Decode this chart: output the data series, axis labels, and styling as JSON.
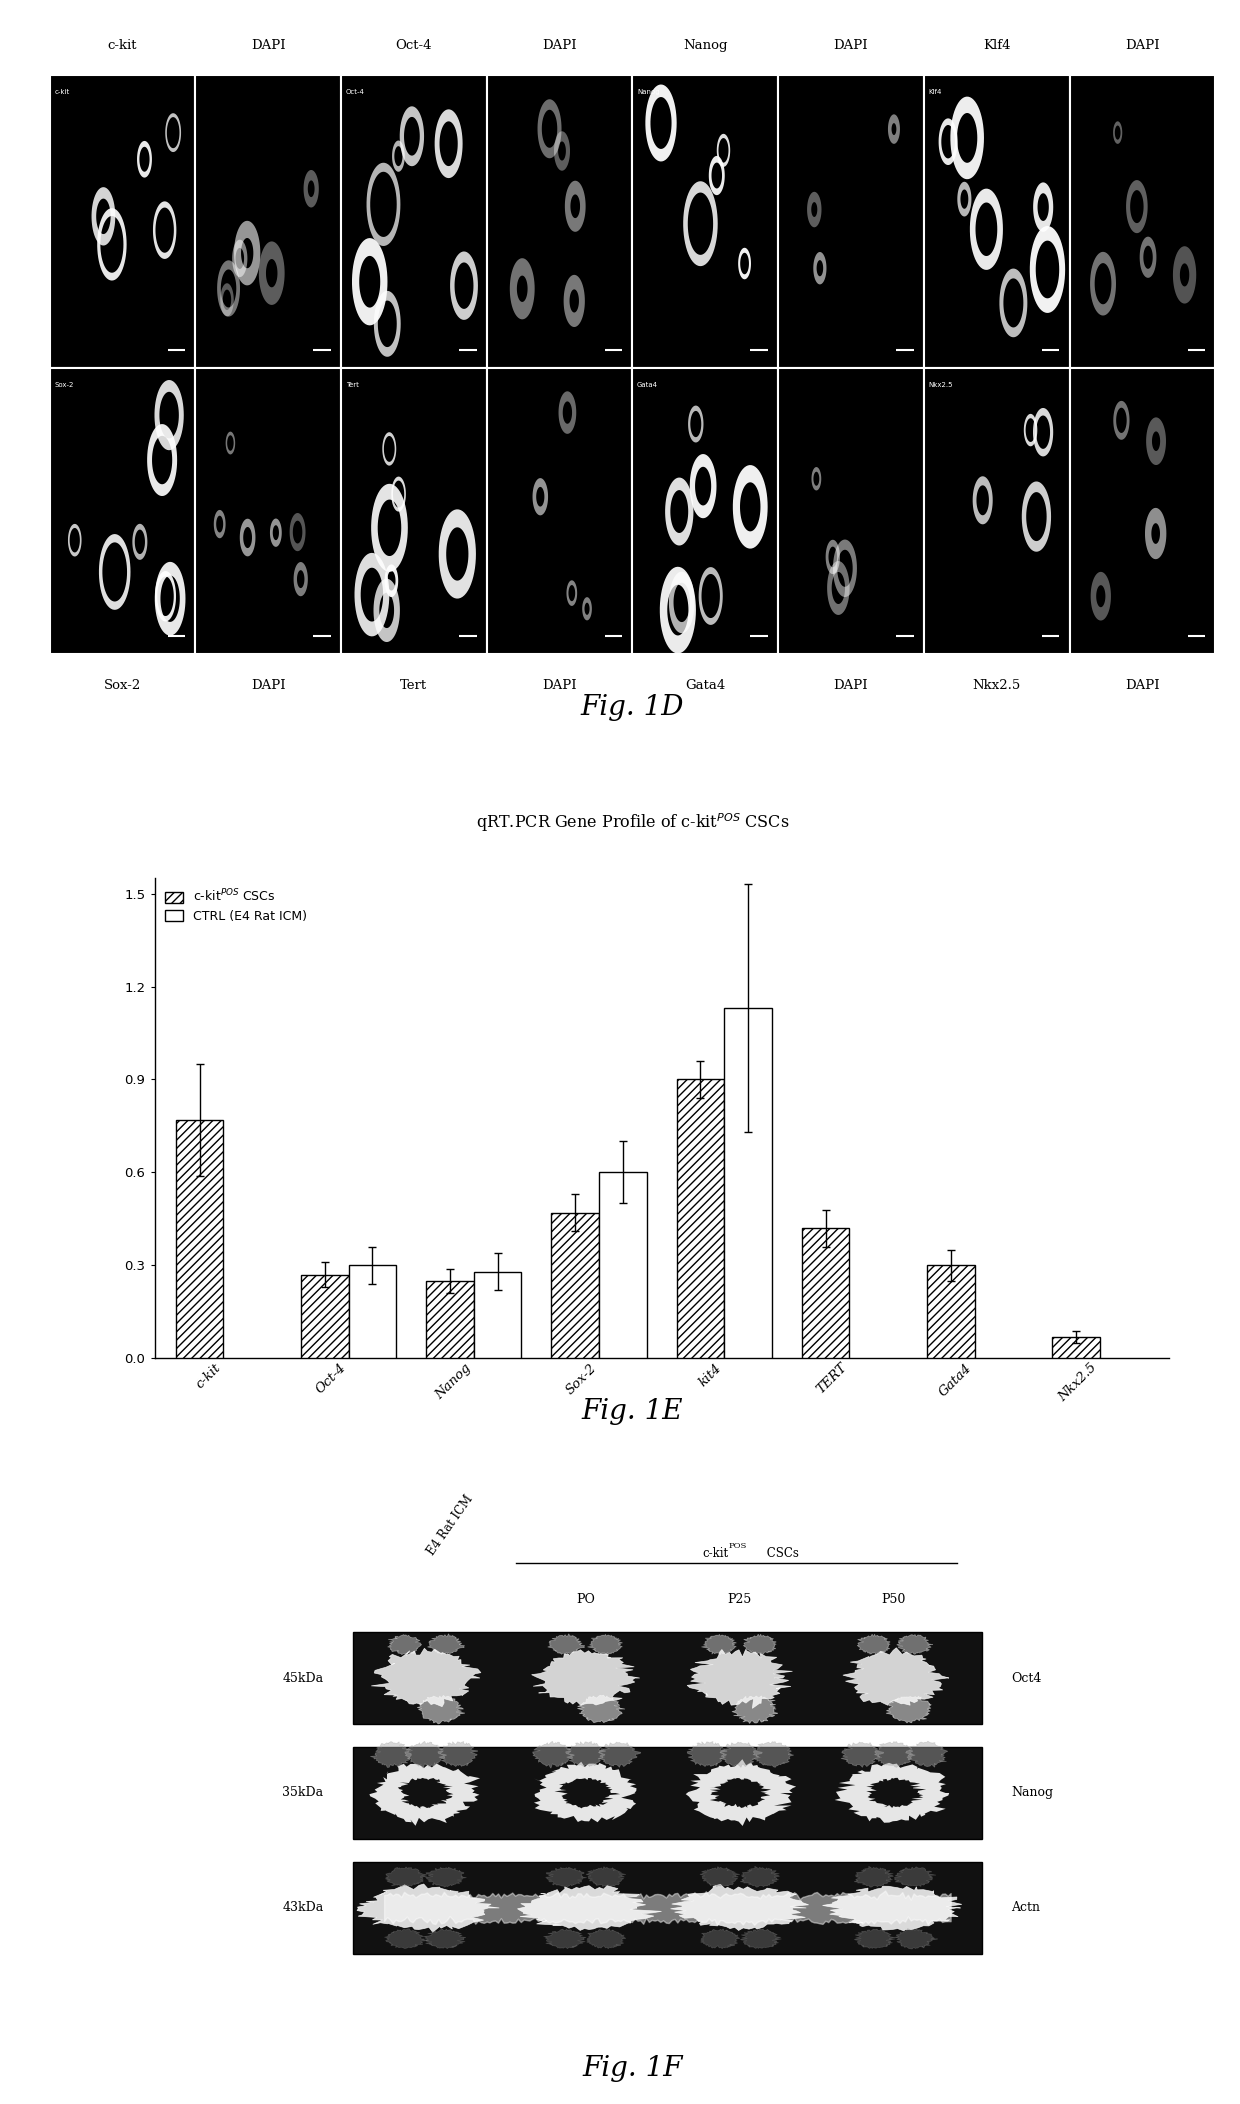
{
  "fig_title_d": "Fig. 1D",
  "fig_title_e": "Fig. 1E",
  "fig_title_f": "Fig. 1F",
  "panel_d": {
    "row1_labels_top": [
      "c-kit",
      "DAPI",
      "Oct-4",
      "DAPI",
      "Nanog",
      "DAPI",
      "Klf4",
      "DAPI"
    ],
    "row2_labels_bottom": [
      "Sox-2",
      "DAPI",
      "Tert",
      "DAPI",
      "Gata4",
      "DAPI",
      "Nkx2.5",
      "DAPI"
    ]
  },
  "panel_e": {
    "title": "qRT.PCR Gene Profile of c-kit$^{POS}$ CSCs",
    "categories": [
      "c-kit",
      "Oct-4",
      "Nanog",
      "Sox-2",
      "kit4",
      "TERT",
      "Gata4",
      "Nkx2.5"
    ],
    "series1_values": [
      0.77,
      0.27,
      0.25,
      0.47,
      0.9,
      0.42,
      0.3,
      0.07
    ],
    "series1_errors": [
      0.18,
      0.04,
      0.04,
      0.06,
      0.06,
      0.06,
      0.05,
      0.02
    ],
    "series2_values": [
      0.0,
      0.3,
      0.28,
      0.6,
      1.13,
      0.0,
      0.0,
      0.0
    ],
    "series2_errors": [
      0.0,
      0.06,
      0.06,
      0.1,
      0.4,
      0.0,
      0.0,
      0.0
    ],
    "ylim": [
      0,
      1.55
    ],
    "yticks": [
      0.0,
      0.3,
      0.6,
      0.9,
      1.2,
      1.5
    ]
  },
  "panel_f": {
    "rows": [
      {
        "kda": "45kDa",
        "label": "Oct4"
      },
      {
        "kda": "35kDa",
        "label": "Nanog"
      },
      {
        "kda": "43kDa",
        "label": "Actn"
      }
    ]
  }
}
